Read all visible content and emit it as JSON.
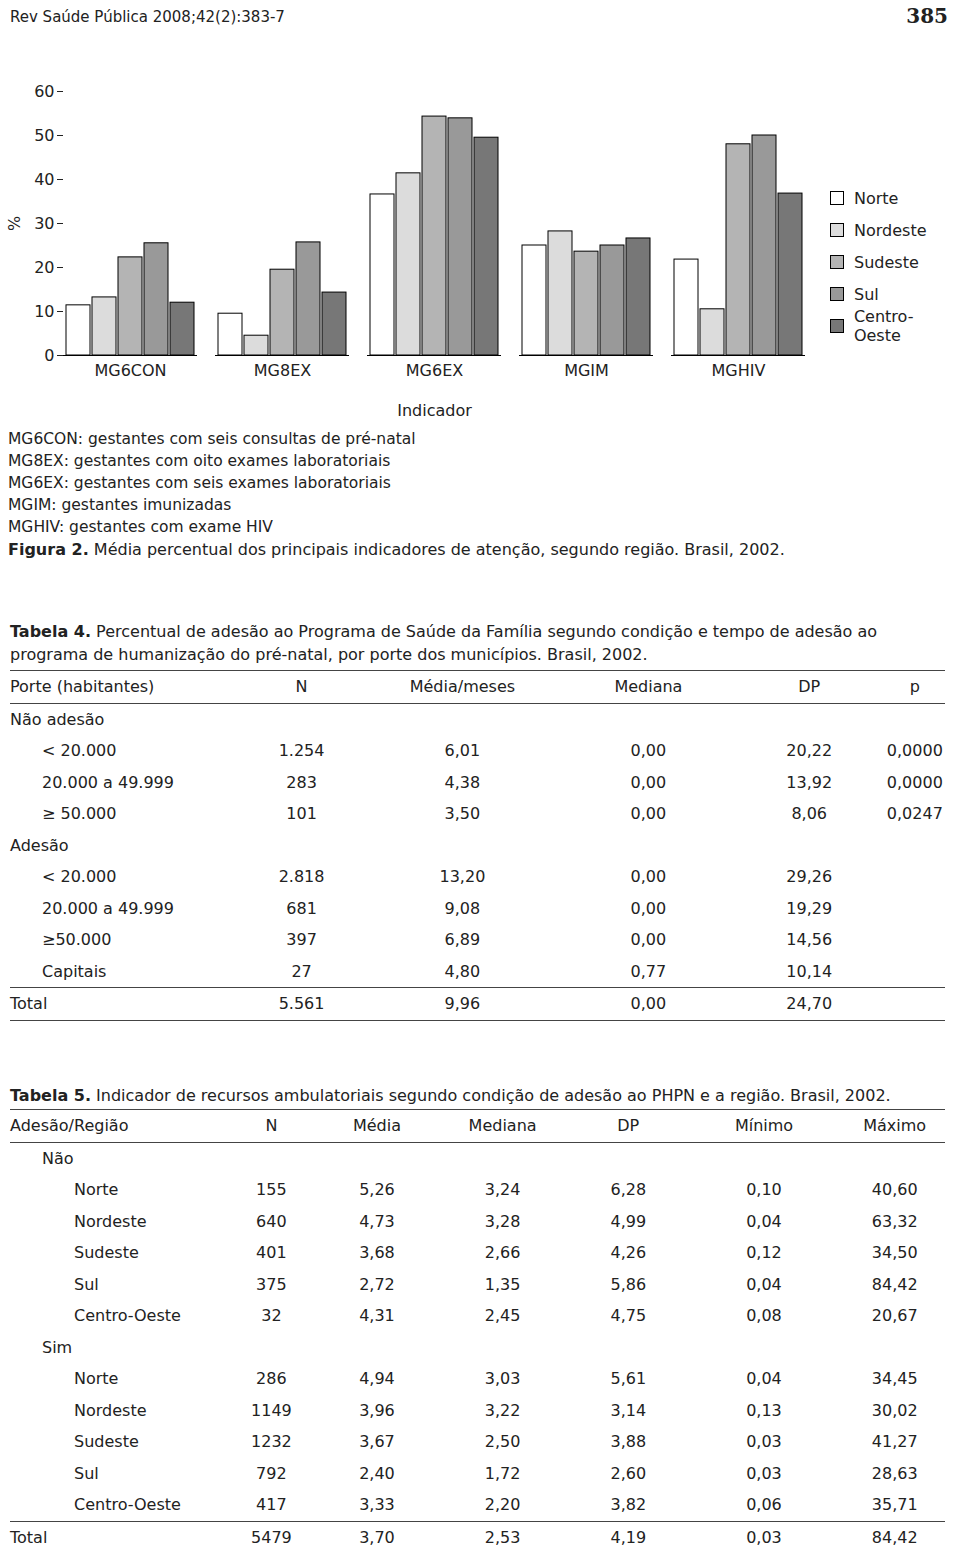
{
  "header": {
    "journal": "Rev Saúde Pública 2008;42(2):383-7",
    "page": "385"
  },
  "chart_data": {
    "type": "bar",
    "xlabel": "Indicador",
    "ylabel": "%",
    "categories": [
      "MG6CON",
      "MG8EX",
      "MG6EX",
      "MGIM",
      "MGHIV"
    ],
    "series": [
      {
        "name": "Norte",
        "color": "#ffffff",
        "values": [
          11.4,
          9.5,
          36.6,
          25.0,
          21.8
        ]
      },
      {
        "name": "Nordeste",
        "color": "#dcdcdc",
        "values": [
          13.2,
          4.5,
          41.4,
          28.2,
          10.5
        ]
      },
      {
        "name": "Sudeste",
        "color": "#b4b4b4",
        "values": [
          22.3,
          19.5,
          54.3,
          23.6,
          48.0
        ]
      },
      {
        "name": "Sul",
        "color": "#999999",
        "values": [
          25.5,
          25.7,
          53.9,
          25.0,
          50.0
        ]
      },
      {
        "name": "Centro-Oeste",
        "color": "#777777",
        "values": [
          12.0,
          14.3,
          49.5,
          26.6,
          36.8
        ]
      }
    ],
    "ylim": [
      0,
      60
    ],
    "yticks": [
      0,
      10,
      20,
      30,
      40,
      50,
      60
    ],
    "legend": "right"
  },
  "figure": {
    "abbreviations": [
      "MG6CON: gestantes com seis consultas de pré-natal",
      "MG8EX: gestantes com oito exames laboratoriais",
      "MG6EX: gestantes com seis exames laboratoriais",
      "MGIM: gestantes imunizadas",
      "MGHIV: gestantes com exame HIV"
    ],
    "caption_label": "Figura 2.",
    "caption": "Média percentual dos principais indicadores de atenção, segundo região. Brasil, 2002."
  },
  "tables": [
    {
      "label": "Tabela 4.",
      "title": "Percentual de adesão ao Programa de Saúde da Família segundo condição e tempo de adesão ao programa de humanização do pré-natal, por porte dos municípios. Brasil, 2002.",
      "columns": [
        "Porte (habitantes)",
        "N",
        "Média/meses",
        "Mediana",
        "DP",
        "p"
      ],
      "groups": [
        {
          "name": "Não adesão",
          "rows": [
            [
              "< 20.000",
              "1.254",
              "6,01",
              "0,00",
              "20,22",
              "0,0000"
            ],
            [
              "20.000 a 49.999",
              "283",
              "4,38",
              "0,00",
              "13,92",
              "0,0000"
            ],
            [
              "≥ 50.000",
              "101",
              "3,50",
              "0,00",
              "8,06",
              "0,0247"
            ]
          ]
        },
        {
          "name": "Adesão",
          "rows": [
            [
              "< 20.000",
              "2.818",
              "13,20",
              "0,00",
              "29,26"
            ],
            [
              "20.000 a 49.999",
              "681",
              "9,08",
              "0,00",
              "19,29"
            ],
            [
              "≥50.000",
              "397",
              "6,89",
              "0,00",
              "14,56"
            ],
            [
              "Capitais",
              "27",
              "4,80",
              "0,77",
              "10,14"
            ]
          ]
        }
      ],
      "total": [
        "Total",
        "5.561",
        "9,96",
        "0,00",
        "24,70"
      ]
    },
    {
      "label": "Tabela 5.",
      "title": "Indicador de recursos ambulatoriais segundo condição de adesão ao PHPN e a região. Brasil, 2002.",
      "columns": [
        "Adesão/Região",
        "N",
        "Média",
        "Mediana",
        "DP",
        "Mínimo",
        "Máximo"
      ],
      "groups": [
        {
          "name": "Não",
          "rows": [
            [
              "Norte",
              "155",
              "5,26",
              "3,24",
              "6,28",
              "0,10",
              "40,60"
            ],
            [
              "Nordeste",
              "640",
              "4,73",
              "3,28",
              "4,99",
              "0,04",
              "63,32"
            ],
            [
              "Sudeste",
              "401",
              "3,68",
              "2,66",
              "4,26",
              "0,12",
              "34,50"
            ],
            [
              "Sul",
              "375",
              "2,72",
              "1,35",
              "5,86",
              "0,04",
              "84,42"
            ],
            [
              "Centro-Oeste",
              "32",
              "4,31",
              "2,45",
              "4,75",
              "0,08",
              "20,67"
            ]
          ]
        },
        {
          "name": "Sim",
          "rows": [
            [
              "Norte",
              "286",
              "4,94",
              "3,03",
              "5,61",
              "0,04",
              "34,45"
            ],
            [
              "Nordeste",
              "1149",
              "3,96",
              "3,22",
              "3,14",
              "0,13",
              "30,02"
            ],
            [
              "Sudeste",
              "1232",
              "3,67",
              "2,50",
              "3,88",
              "0,03",
              "41,27"
            ],
            [
              "Sul",
              "792",
              "2,40",
              "1,72",
              "2,60",
              "0,03",
              "28,63"
            ],
            [
              "Centro-Oeste",
              "417",
              "3,33",
              "2,20",
              "3,82",
              "0,06",
              "35,71"
            ]
          ]
        }
      ],
      "total": [
        "Total",
        "5479",
        "3,70",
        "2,53",
        "4,19",
        "0,03",
        "84,42"
      ]
    }
  ]
}
